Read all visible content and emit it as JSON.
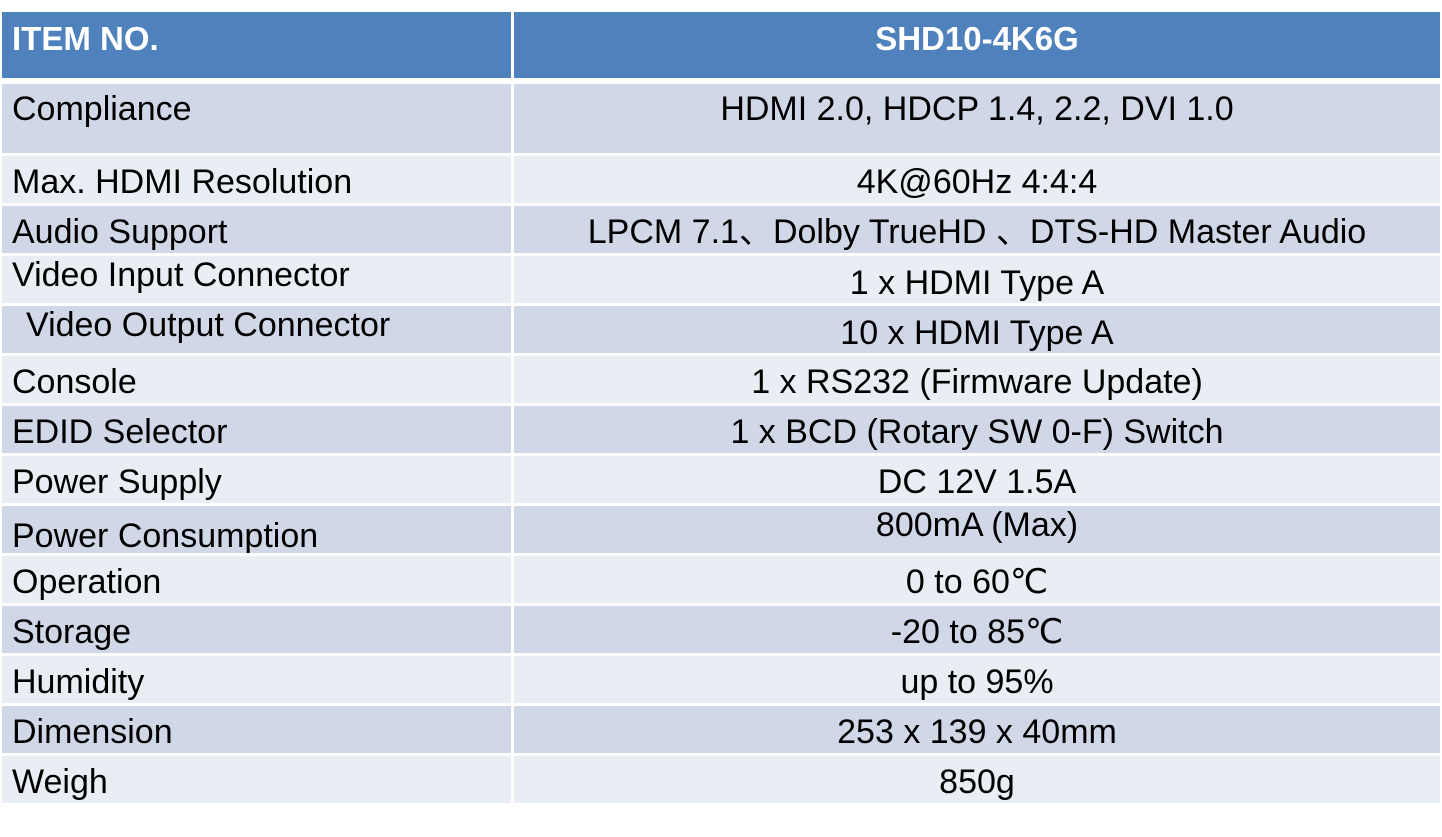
{
  "header": {
    "item_label": "ITEM NO.",
    "model": "SHD10-4K6G"
  },
  "rows": [
    {
      "label": "Compliance",
      "value": "HDMI 2.0, HDCP 1.4, 2.2, DVI 1.0"
    },
    {
      "label": "Max. HDMI Resolution",
      "value": "4K@60Hz 4:4:4"
    },
    {
      "label": "Audio Support",
      "value": "LPCM 7.1、Dolby TrueHD 、DTS-HD Master Audio"
    },
    {
      "label": "Video Input Connector",
      "value": "1 x HDMI Type A"
    },
    {
      "label": "Video Output Connector",
      "value": "10 x HDMI Type A"
    },
    {
      "label": "Console",
      "value": "1 x RS232 (Firmware Update)"
    },
    {
      "label": "EDID Selector",
      "value": "1 x BCD (Rotary SW 0-F) Switch"
    },
    {
      "label": "Power Supply",
      "value": "DC 12V 1.5A"
    },
    {
      "label": "Power Consumption",
      "value": "800mA (Max)"
    },
    {
      "label": "Operation",
      "value": "0 to 60℃"
    },
    {
      "label": "Storage",
      "value": "-20 to 85℃"
    },
    {
      "label": "Humidity",
      "value": "up to 95%"
    },
    {
      "label": "Dimension",
      "value": "253 x 139 x 40mm"
    },
    {
      "label": "Weigh",
      "value": "850g"
    }
  ],
  "colors": {
    "header_bg": "#4f81bd",
    "row_odd_bg": "#d0d8e8",
    "row_even_bg": "#e9edf4"
  }
}
